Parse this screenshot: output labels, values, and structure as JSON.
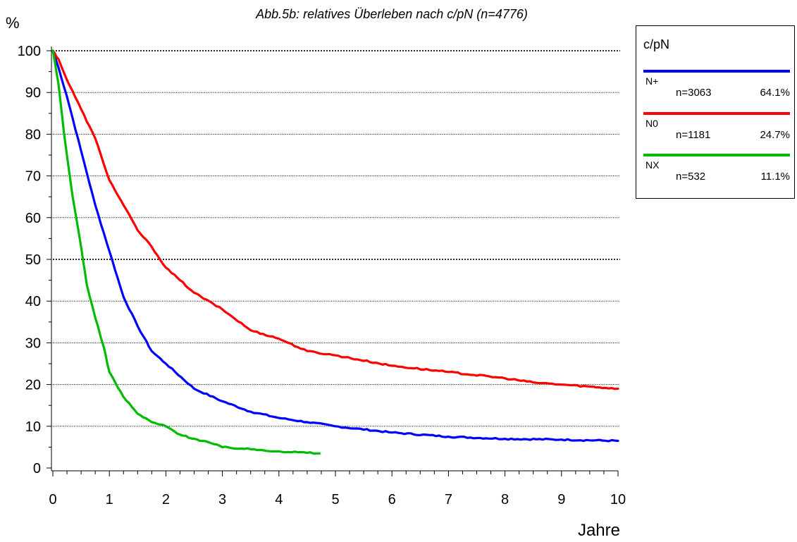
{
  "chart_data": {
    "type": "line",
    "title": "Abb.5b: relatives Überleben nach c/pN (n=4776)",
    "ylabel": "%",
    "xlabel": "Jahre",
    "xlim": [
      0,
      10
    ],
    "ylim": [
      0,
      100
    ],
    "x_ticks": [
      "0",
      "1",
      "2",
      "3",
      "4",
      "5",
      "6",
      "7",
      "8",
      "9",
      "10"
    ],
    "y_ticks": [
      "0",
      "10",
      "20",
      "30",
      "40",
      "50",
      "60",
      "70",
      "80",
      "90",
      "100"
    ],
    "grid": "horizontal dotted",
    "legend": {
      "title": "c/pN",
      "position": "right",
      "items": [
        {
          "name": "N+",
          "n": "n=3063",
          "pct": "64.1%",
          "color": "#0000ff"
        },
        {
          "name": "N0",
          "n": "n=1181",
          "pct": "24.7%",
          "color": "#ff0000"
        },
        {
          "name": "NX",
          "n": "n=532",
          "pct": "11.1%",
          "color": "#00bb00"
        }
      ]
    },
    "series": [
      {
        "name": "N+",
        "color": "#0000ff",
        "points": [
          [
            0,
            100
          ],
          [
            0.1,
            96
          ],
          [
            0.25,
            89
          ],
          [
            0.5,
            76
          ],
          [
            0.75,
            63
          ],
          [
            1,
            52
          ],
          [
            1.25,
            41
          ],
          [
            1.5,
            34
          ],
          [
            1.75,
            28
          ],
          [
            2,
            25
          ],
          [
            2.5,
            19
          ],
          [
            3,
            16
          ],
          [
            3.5,
            13.5
          ],
          [
            4,
            12
          ],
          [
            4.5,
            11
          ],
          [
            5,
            10
          ],
          [
            6,
            8.5
          ],
          [
            7,
            7.5
          ],
          [
            8,
            7
          ],
          [
            9,
            6.8
          ],
          [
            10,
            6.5
          ]
        ]
      },
      {
        "name": "N0",
        "color": "#ff0000",
        "points": [
          [
            0,
            100
          ],
          [
            0.1,
            98
          ],
          [
            0.25,
            93
          ],
          [
            0.5,
            86
          ],
          [
            0.75,
            79
          ],
          [
            1,
            69
          ],
          [
            1.25,
            63
          ],
          [
            1.5,
            57
          ],
          [
            1.75,
            53
          ],
          [
            2,
            48
          ],
          [
            2.25,
            45
          ],
          [
            2.5,
            42
          ],
          [
            3,
            38
          ],
          [
            3.5,
            33
          ],
          [
            4,
            31
          ],
          [
            4.5,
            28
          ],
          [
            5,
            27
          ],
          [
            6,
            24.5
          ],
          [
            7,
            23
          ],
          [
            8,
            21.5
          ],
          [
            8.5,
            20.5
          ],
          [
            9,
            20
          ],
          [
            10,
            19
          ]
        ]
      },
      {
        "name": "NX",
        "color": "#00bb00",
        "points": [
          [
            0,
            100
          ],
          [
            0.1,
            92
          ],
          [
            0.2,
            80
          ],
          [
            0.35,
            65
          ],
          [
            0.5,
            53
          ],
          [
            0.6,
            44
          ],
          [
            0.75,
            36
          ],
          [
            0.9,
            29
          ],
          [
            1,
            23
          ],
          [
            1.25,
            17
          ],
          [
            1.5,
            13
          ],
          [
            1.75,
            11
          ],
          [
            2,
            10
          ],
          [
            2.25,
            8
          ],
          [
            2.5,
            7
          ],
          [
            2.75,
            6.2
          ],
          [
            3,
            5
          ],
          [
            3.5,
            4.5
          ],
          [
            4,
            4
          ],
          [
            4.72,
            3.5
          ]
        ]
      }
    ]
  }
}
